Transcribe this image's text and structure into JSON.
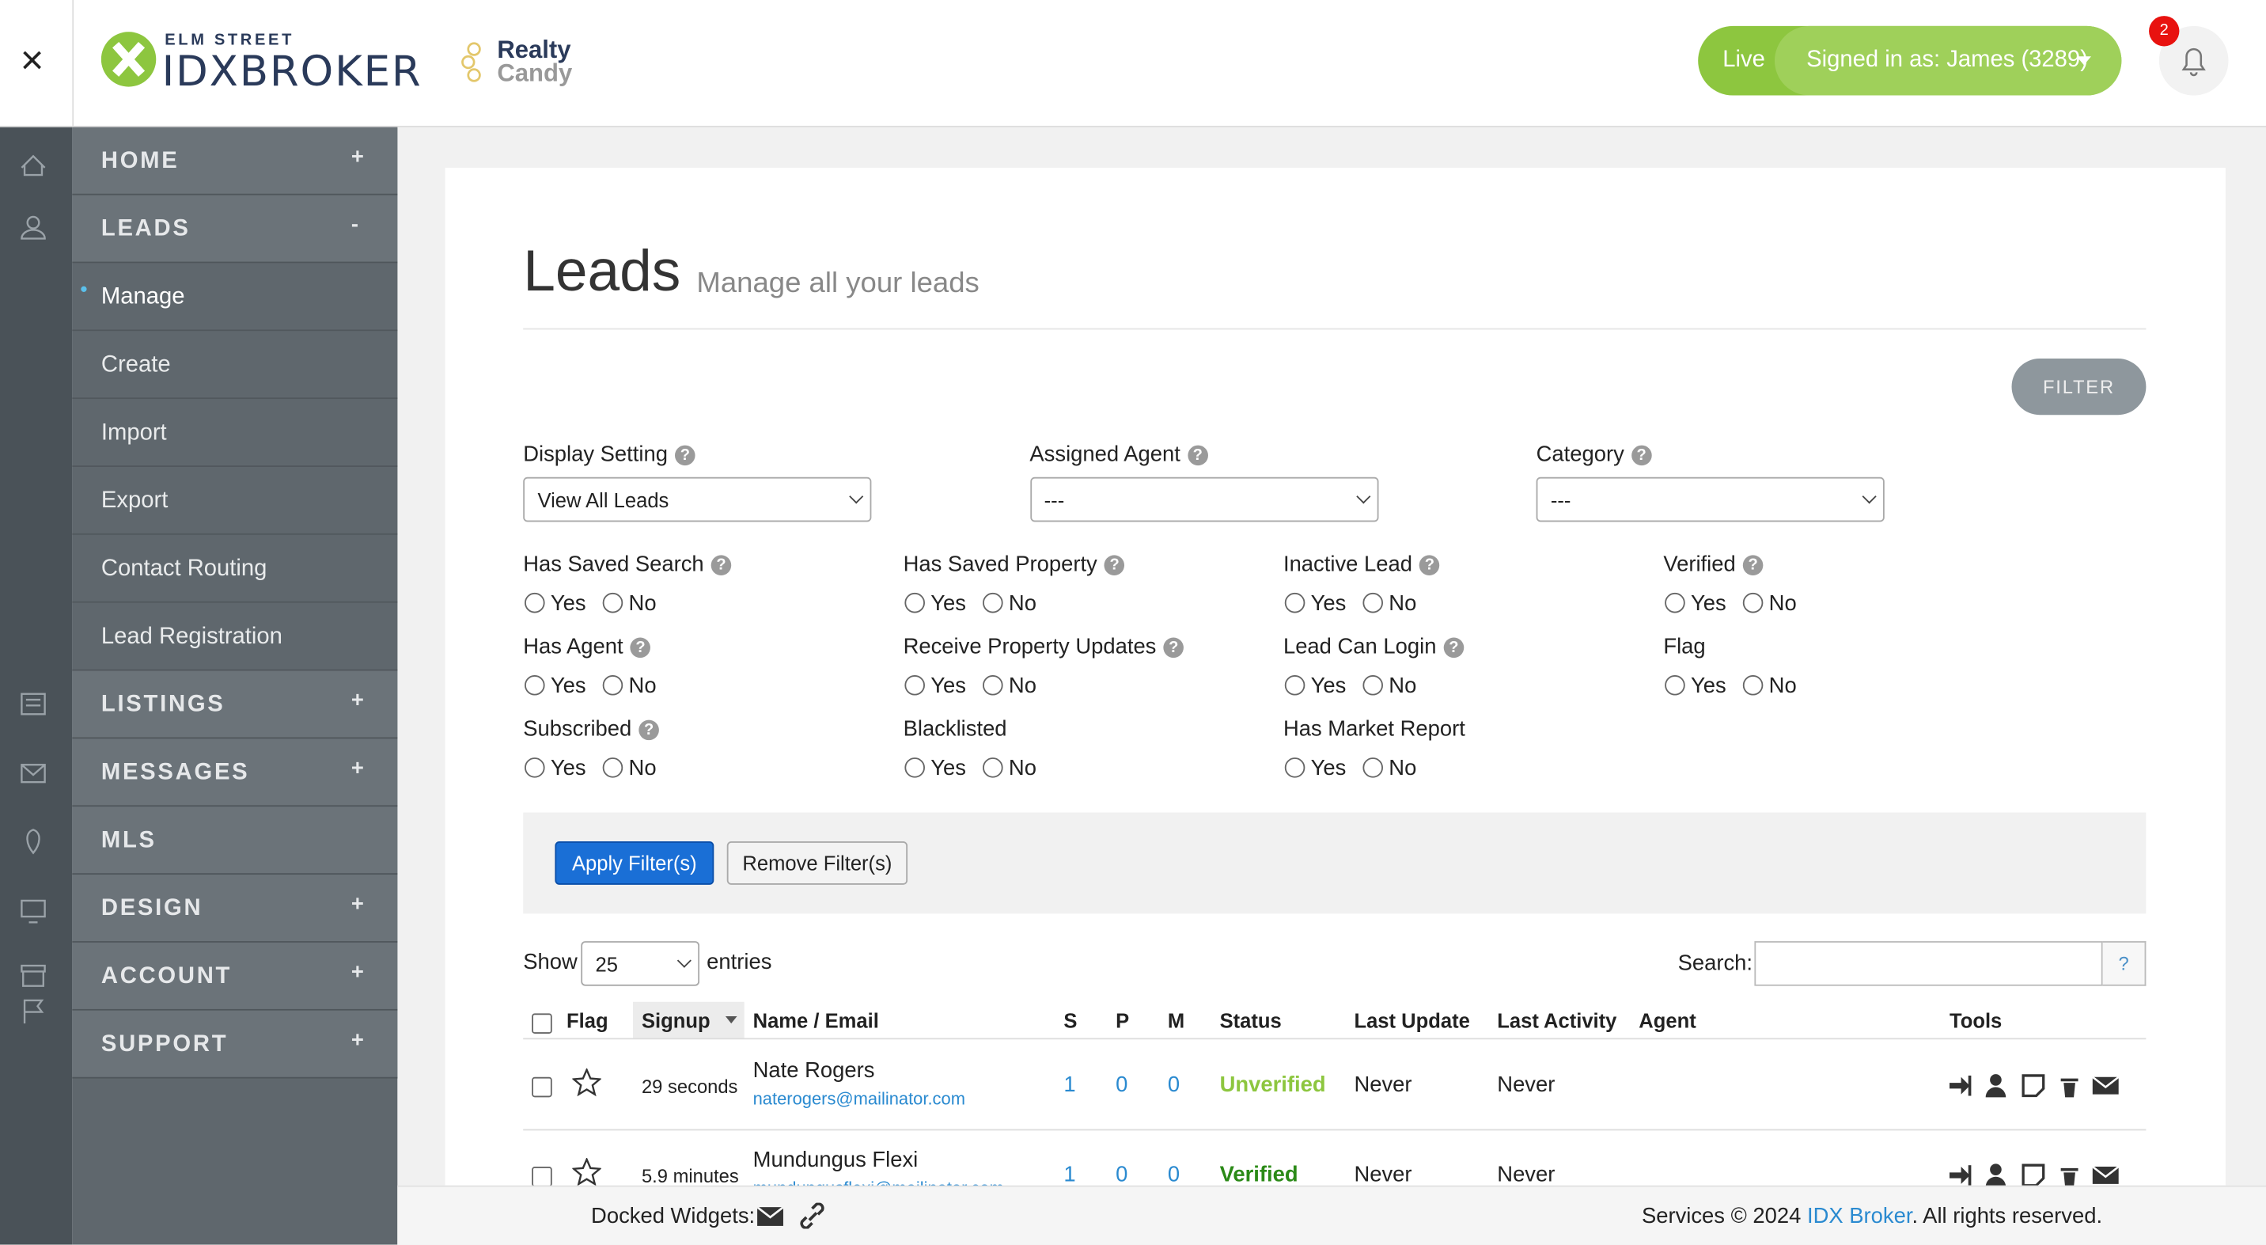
{
  "header": {
    "close": "×",
    "logo_top": "ELM STREET",
    "logo": "IDXBROKER",
    "partner_top": "Realty",
    "partner_bottom": "Candy",
    "live": "Live",
    "signed_in": "Signed in as: James (3289)",
    "notifications": "2"
  },
  "help_icon": "?",
  "sidebar": {
    "menu": [
      {
        "label": "HOME",
        "toggle": "+"
      },
      {
        "label": "LEADS",
        "toggle": "-",
        "items": [
          "Manage",
          "Create",
          "Import",
          "Export",
          "Contact Routing",
          "Lead Registration"
        ]
      },
      {
        "label": "LISTINGS",
        "toggle": "+"
      },
      {
        "label": "MESSAGES",
        "toggle": "+"
      },
      {
        "label": "MLS"
      },
      {
        "label": "DESIGN",
        "toggle": "+"
      },
      {
        "label": "ACCOUNT",
        "toggle": "+"
      },
      {
        "label": "SUPPORT",
        "toggle": "+"
      }
    ]
  },
  "page": {
    "title": "Leads",
    "subtitle": "Manage all your leads",
    "filter_button": "FILTER"
  },
  "selects": [
    {
      "label": "Display Setting",
      "value": "View All Leads"
    },
    {
      "label": "Assigned Agent",
      "value": "---"
    },
    {
      "label": "Category",
      "value": "---"
    }
  ],
  "radio_groups": [
    {
      "label": "Has Saved Search",
      "help": true,
      "options": [
        "Yes",
        "No"
      ]
    },
    {
      "label": "Has Saved Property",
      "help": true,
      "options": [
        "Yes",
        "No"
      ]
    },
    {
      "label": "Inactive Lead",
      "help": true,
      "options": [
        "Yes",
        "No"
      ]
    },
    {
      "label": "Verified",
      "help": true,
      "options": [
        "Yes",
        "No"
      ]
    },
    {
      "label": "Has Agent",
      "help": true,
      "options": [
        "Yes",
        "No"
      ]
    },
    {
      "label": "Receive Property Updates",
      "help": true,
      "options": [
        "Yes",
        "No"
      ]
    },
    {
      "label": "Lead Can Login",
      "help": true,
      "options": [
        "Yes",
        "No"
      ]
    },
    {
      "label": "Flag",
      "options": [
        "Yes",
        "No"
      ]
    },
    {
      "label": "Subscribed",
      "help": true,
      "options": [
        "Yes",
        "No"
      ]
    },
    {
      "label": "Blacklisted",
      "options": [
        "Yes",
        "No"
      ]
    },
    {
      "label": "Has Market Report",
      "options": [
        "Yes",
        "No"
      ]
    }
  ],
  "buttons": {
    "apply": "Apply Filter(s)",
    "remove": "Remove Filter(s)"
  },
  "table_controls": {
    "show": "Show",
    "entries_value": "25",
    "entries": "entries",
    "search": "Search:",
    "search_help": "?"
  },
  "table": {
    "columns": [
      "Flag",
      "Signup",
      "Name / Email",
      "S",
      "P",
      "M",
      "Status",
      "Last Update",
      "Last Activity",
      "Agent",
      "Tools"
    ],
    "rows": [
      {
        "signup": "29 seconds",
        "name": "Nate Rogers",
        "email": "naterogers@mailinator.com",
        "s": 1,
        "p": 0,
        "m": 0,
        "status": "Unverified",
        "last_update": "Never",
        "last_activity": "Never"
      },
      {
        "signup": "5.9 minutes",
        "name": "Mundungus Flexi",
        "email": "mundungusflexi@mailinator.com",
        "s": 1,
        "p": 0,
        "m": 0,
        "status": "Verified",
        "last_update": "Never",
        "last_activity": "Never"
      }
    ]
  },
  "footer": {
    "docked": "Docked Widgets:",
    "copyright": "Services © 2024",
    "link": "IDX Broker",
    "rest": ". All rights reserved."
  }
}
